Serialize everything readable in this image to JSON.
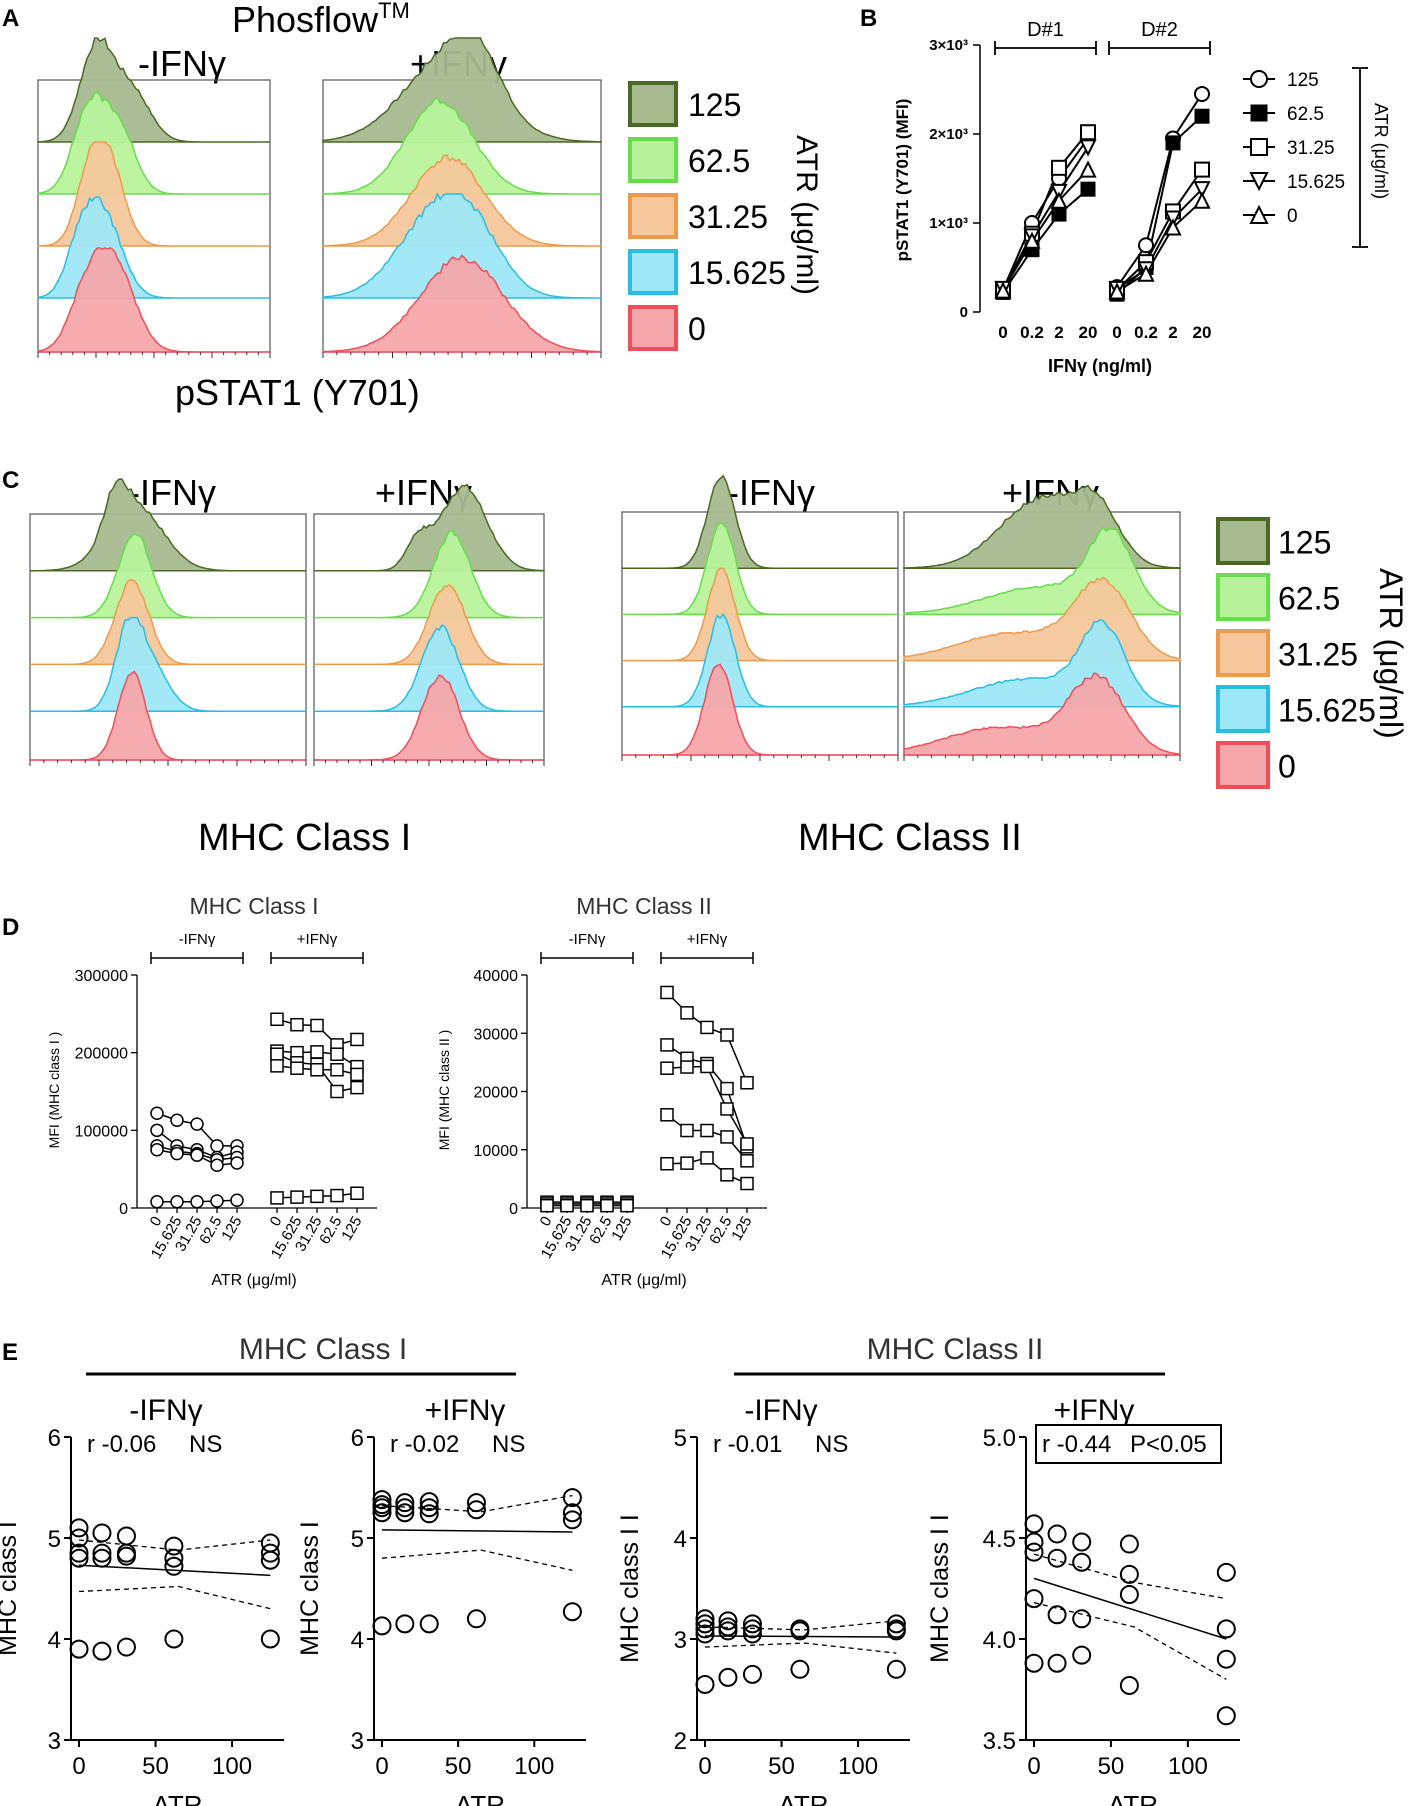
{
  "panel_letters": [
    "A",
    "B",
    "C",
    "D",
    "E"
  ],
  "panelA": {
    "title": "Phosflow",
    "title_sup": "TM",
    "cond_minus": "-IFNγ",
    "cond_plus": "+IFNγ",
    "xlabel": "pSTAT1 (Y701)"
  },
  "legend": {
    "title": "ATR (μg/ml)",
    "items": [
      "125",
      "62.5",
      "31.25",
      "15.625",
      "0"
    ],
    "fills": [
      "#a7b98f",
      "#b8f39b",
      "#f6c79c",
      "#9ee7f6",
      "#f5a6aa"
    ],
    "strokes": [
      "#4a6a23",
      "#66dd4a",
      "#ee9a4d",
      "#29bde3",
      "#ee4f59"
    ]
  },
  "panelC": {
    "cond_minus": "-IFNγ",
    "cond_plus": "+IFNγ",
    "xlabel1": "MHC Class I",
    "xlabel2": "MHC Class II"
  },
  "chart_data": [
    {
      "id": "B",
      "type": "line",
      "ylabel": "pSTAT1 (Y701) (MFI)",
      "xlabel": "IFNγ (ng/ml)",
      "categories": [
        "0",
        "0.2",
        "2",
        "20"
      ],
      "yticks": [
        "0",
        "1×10³",
        "2×10³",
        "3×10³"
      ],
      "ylim": [
        0,
        3000
      ],
      "donors": [
        "D#1",
        "D#2"
      ],
      "legend_title": "ATR (μg/ml)",
      "series": [
        {
          "name": "125",
          "marker": "circle-open",
          "values": [
            [
              250,
              1000,
              1500,
              1950
            ],
            [
              280,
              750,
              1950,
              2450
            ]
          ]
        },
        {
          "name": "62.5",
          "marker": "square-filled",
          "values": [
            [
              220,
              700,
              1100,
              1380
            ],
            [
              200,
              500,
              1900,
              2200
            ]
          ]
        },
        {
          "name": "31.25",
          "marker": "square-open",
          "values": [
            [
              250,
              880,
              1620,
              2020
            ],
            [
              250,
              560,
              1130,
              1600
            ]
          ]
        },
        {
          "name": "15.625",
          "marker": "triangle-down-open",
          "values": [
            [
              260,
              850,
              1350,
              1850
            ],
            [
              260,
              480,
              1050,
              1380
            ]
          ]
        },
        {
          "name": "0",
          "marker": "triangle-up-open",
          "values": [
            [
              240,
              800,
              1250,
              1600
            ],
            [
              230,
              430,
              950,
              1250
            ]
          ]
        }
      ]
    },
    {
      "id": "D1",
      "type": "line",
      "title": "MHC Class I",
      "ylabel": "MFI (MHC class I )",
      "xlabel": "ATR (μg/ml)",
      "groups": [
        "-IFNγ",
        "+IFNγ"
      ],
      "categories": [
        "0",
        "15.625",
        "31.25",
        "62.5",
        "125"
      ],
      "yticks": [
        "0",
        "100000",
        "200000",
        "300000"
      ],
      "ylim": [
        0,
        300000
      ],
      "series_minus": [
        [
          122000,
          113000,
          108000,
          80000,
          80000
        ],
        [
          100000,
          80000,
          75000,
          65000,
          72000
        ],
        [
          80000,
          73000,
          70000,
          62000,
          65000
        ],
        [
          75000,
          70000,
          68000,
          55000,
          58000
        ],
        [
          8000,
          8000,
          8000,
          9000,
          10000
        ]
      ],
      "series_plus": [
        [
          243000,
          236000,
          235000,
          210000,
          217000
        ],
        [
          202000,
          200000,
          201000,
          198000,
          182000
        ],
        [
          198000,
          187000,
          185000,
          150000,
          155000
        ],
        [
          183000,
          180000,
          178000,
          178000,
          172000
        ],
        [
          13000,
          14000,
          15000,
          16000,
          19000
        ]
      ]
    },
    {
      "id": "D2",
      "type": "line",
      "title": "MHC Class II",
      "ylabel": "MFI (MHC class II )",
      "xlabel": "ATR (μg/ml)",
      "groups": [
        "-IFNγ",
        "+IFNγ"
      ],
      "categories": [
        "0",
        "15.625",
        "31.25",
        "62.5",
        "125"
      ],
      "yticks": [
        "0",
        "10000",
        "20000",
        "30000",
        "40000"
      ],
      "ylim": [
        0,
        40000
      ],
      "series_minus": [
        [
          1000,
          1000,
          1000,
          1000,
          1000
        ],
        [
          700,
          700,
          700,
          700,
          700
        ],
        [
          400,
          400,
          400,
          400,
          400
        ]
      ],
      "series_plus": [
        [
          37000,
          33500,
          31000,
          29700,
          21500
        ],
        [
          28000,
          25700,
          24800,
          20500,
          10500
        ],
        [
          24000,
          24200,
          24300,
          17000,
          11000
        ],
        [
          16000,
          13300,
          13300,
          12200,
          8100
        ],
        [
          7600,
          7700,
          8600,
          5700,
          4200
        ]
      ]
    },
    {
      "id": "E1",
      "type": "scatter",
      "ylabel": "MHC class I",
      "xlabel": "ATR",
      "group": "MHC Class I",
      "condition": "-IFNγ",
      "stat": "r -0.06",
      "sig": "NS",
      "xticks": [
        "0",
        "50",
        "100"
      ],
      "yticks": [
        "3",
        "4",
        "5",
        "6"
      ],
      "xlim": [
        0,
        130
      ],
      "ylim": [
        3,
        6
      ],
      "x": [
        0,
        0,
        0,
        0,
        0,
        15,
        15,
        15,
        15,
        31,
        31,
        31,
        31,
        62,
        62,
        62,
        62,
        125,
        125,
        125,
        125
      ],
      "y": [
        5.1,
        5.0,
        4.85,
        4.8,
        3.9,
        5.05,
        4.85,
        4.8,
        3.88,
        5.02,
        4.85,
        4.82,
        3.92,
        4.92,
        4.8,
        4.72,
        4.0,
        4.95,
        4.85,
        4.78,
        4.0
      ],
      "fit": [
        [
          0,
          4.73
        ],
        [
          125,
          4.63
        ]
      ],
      "ci_upper": [
        [
          0,
          4.98
        ],
        [
          65,
          4.88
        ],
        [
          125,
          4.98
        ]
      ],
      "ci_lower": [
        [
          0,
          4.47
        ],
        [
          65,
          4.52
        ],
        [
          125,
          4.3
        ]
      ]
    },
    {
      "id": "E2",
      "type": "scatter",
      "ylabel": "MHC class I",
      "xlabel": "ATR",
      "group": "MHC Class I",
      "condition": "+IFNγ",
      "stat": "r -0.02",
      "sig": "NS",
      "xticks": [
        "0",
        "50",
        "100"
      ],
      "yticks": [
        "3",
        "4",
        "5",
        "6"
      ],
      "xlim": [
        0,
        130
      ],
      "ylim": [
        3,
        6
      ],
      "x": [
        0,
        0,
        0,
        0,
        0,
        15,
        15,
        15,
        15,
        31,
        31,
        31,
        31,
        62,
        62,
        62,
        125,
        125,
        125,
        125
      ],
      "y": [
        5.38,
        5.33,
        5.3,
        5.25,
        4.13,
        5.35,
        5.3,
        5.25,
        4.15,
        5.36,
        5.3,
        5.24,
        4.15,
        5.35,
        5.28,
        4.2,
        5.4,
        5.25,
        5.18,
        4.27
      ],
      "fit": [
        [
          0,
          5.08
        ],
        [
          125,
          5.06
        ]
      ],
      "ci_upper": [
        [
          0,
          5.32
        ],
        [
          65,
          5.26
        ],
        [
          125,
          5.42
        ]
      ],
      "ci_lower": [
        [
          0,
          4.8
        ],
        [
          65,
          4.88
        ],
        [
          125,
          4.68
        ]
      ]
    },
    {
      "id": "E3",
      "type": "scatter",
      "ylabel": "MHC class I I",
      "xlabel": "ATR",
      "group": "MHC Class II",
      "condition": "-IFNγ",
      "stat": "r -0.01",
      "sig": "NS",
      "xticks": [
        "0",
        "50",
        "100"
      ],
      "yticks": [
        "2",
        "3",
        "4",
        "5"
      ],
      "xlim": [
        0,
        130
      ],
      "ylim": [
        2,
        5
      ],
      "x": [
        0,
        0,
        0,
        0,
        0,
        15,
        15,
        15,
        15,
        31,
        31,
        31,
        31,
        62,
        62,
        62,
        125,
        125,
        125,
        125
      ],
      "y": [
        3.2,
        3.15,
        3.1,
        3.05,
        2.55,
        3.18,
        3.12,
        3.08,
        2.62,
        3.15,
        3.1,
        3.05,
        2.65,
        3.1,
        3.08,
        2.7,
        3.15,
        3.1,
        3.08,
        2.7
      ],
      "fit": [
        [
          0,
          3.03
        ],
        [
          125,
          3.02
        ]
      ],
      "ci_upper": [
        [
          0,
          3.12
        ],
        [
          65,
          3.09
        ],
        [
          125,
          3.18
        ]
      ],
      "ci_lower": [
        [
          0,
          2.92
        ],
        [
          65,
          2.96
        ],
        [
          125,
          2.86
        ]
      ]
    },
    {
      "id": "E4",
      "type": "scatter",
      "ylabel": "MHC class I I",
      "xlabel": "ATR",
      "group": "MHC Class II",
      "condition": "+IFNγ",
      "stat": "r -0.44",
      "sig": "P<0.05",
      "xticks": [
        "0",
        "50",
        "100"
      ],
      "yticks": [
        "3.5",
        "4.0",
        "4.5",
        "5.0"
      ],
      "xlim": [
        0,
        130
      ],
      "ylim": [
        3.5,
        5.0
      ],
      "x": [
        0,
        0,
        0,
        0,
        0,
        15,
        15,
        15,
        15,
        31,
        31,
        31,
        31,
        62,
        62,
        62,
        62,
        125,
        125,
        125,
        125
      ],
      "y": [
        4.57,
        4.48,
        4.43,
        4.2,
        3.88,
        4.52,
        4.4,
        4.12,
        3.88,
        4.48,
        4.38,
        4.1,
        3.92,
        4.47,
        4.32,
        4.22,
        3.77,
        4.33,
        4.05,
        3.9,
        3.62
      ],
      "fit": [
        [
          0,
          4.3
        ],
        [
          125,
          4.0
        ]
      ],
      "ci_upper": [
        [
          0,
          4.42
        ],
        [
          65,
          4.28
        ],
        [
          125,
          4.2
        ]
      ],
      "ci_lower": [
        [
          0,
          4.18
        ],
        [
          65,
          4.06
        ],
        [
          125,
          3.8
        ]
      ]
    }
  ]
}
